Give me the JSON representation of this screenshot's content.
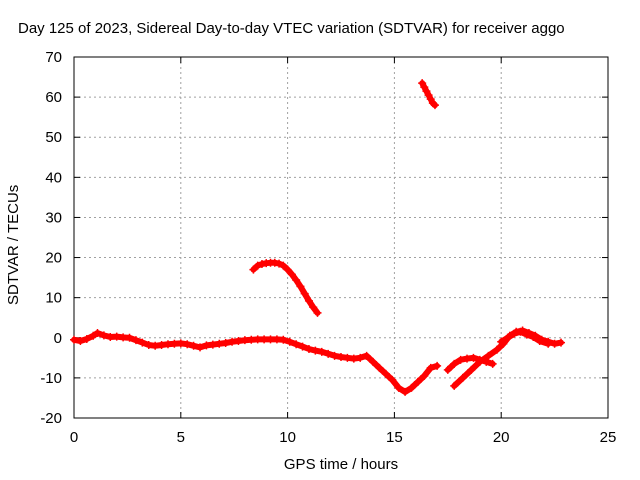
{
  "chart_data": {
    "type": "scatter",
    "title": "Day 125 of 2023, Sidereal Day-to-day VTEC variation (SDTVAR) for receiver aggo",
    "xlabel": "GPS time / hours",
    "ylabel": "SDTVAR / TECUs",
    "xlim": [
      0,
      25
    ],
    "ylim": [
      -20,
      70
    ],
    "xticks": [
      0,
      5,
      10,
      15,
      20,
      25
    ],
    "yticks": [
      -20,
      -10,
      0,
      10,
      20,
      30,
      40,
      50,
      60,
      70
    ],
    "grid": true,
    "marker_color": "#ff0000",
    "series": [
      {
        "name": "track-main",
        "points": [
          [
            0.0,
            -0.5
          ],
          [
            0.3,
            -0.8
          ],
          [
            0.6,
            -0.3
          ],
          [
            0.9,
            0.5
          ],
          [
            1.1,
            1.2
          ],
          [
            1.4,
            0.6
          ],
          [
            1.7,
            0.2
          ],
          [
            2.0,
            0.3
          ],
          [
            2.3,
            0.1
          ],
          [
            2.6,
            0.0
          ],
          [
            2.9,
            -0.6
          ],
          [
            3.2,
            -1.2
          ],
          [
            3.5,
            -1.8
          ],
          [
            3.8,
            -2.0
          ],
          [
            4.1,
            -1.8
          ],
          [
            4.4,
            -1.6
          ],
          [
            4.7,
            -1.5
          ],
          [
            5.0,
            -1.4
          ],
          [
            5.3,
            -1.6
          ],
          [
            5.6,
            -2.0
          ],
          [
            5.9,
            -2.4
          ],
          [
            6.2,
            -1.9
          ],
          [
            6.5,
            -1.7
          ],
          [
            6.8,
            -1.5
          ],
          [
            7.1,
            -1.3
          ],
          [
            7.4,
            -1.0
          ],
          [
            7.7,
            -0.8
          ],
          [
            8.0,
            -0.6
          ],
          [
            8.3,
            -0.5
          ],
          [
            8.6,
            -0.4
          ],
          [
            8.9,
            -0.4
          ],
          [
            9.2,
            -0.4
          ],
          [
            9.5,
            -0.4
          ],
          [
            9.8,
            -0.5
          ],
          [
            10.1,
            -1.0
          ],
          [
            10.4,
            -1.6
          ],
          [
            10.7,
            -2.2
          ],
          [
            11.0,
            -2.8
          ],
          [
            11.3,
            -3.2
          ],
          [
            11.6,
            -3.5
          ],
          [
            11.9,
            -4.0
          ],
          [
            12.2,
            -4.5
          ],
          [
            12.5,
            -4.8
          ],
          [
            12.8,
            -5.0
          ],
          [
            13.1,
            -5.2
          ],
          [
            13.4,
            -5.0
          ],
          [
            13.7,
            -4.5
          ],
          [
            14.0,
            -6.0
          ],
          [
            14.3,
            -7.5
          ],
          [
            14.6,
            -9.0
          ],
          [
            14.9,
            -10.5
          ],
          [
            15.2,
            -12.5
          ],
          [
            15.5,
            -13.5
          ],
          [
            15.8,
            -12.5
          ],
          [
            16.1,
            -11.0
          ],
          [
            16.4,
            -9.5
          ],
          [
            16.7,
            -7.5
          ],
          [
            17.0,
            -7.0
          ]
        ]
      },
      {
        "name": "track-evening",
        "points": [
          [
            17.5,
            -8.0
          ],
          [
            17.8,
            -6.5
          ],
          [
            18.1,
            -5.5
          ],
          [
            18.4,
            -5.2
          ],
          [
            18.7,
            -5.0
          ],
          [
            19.0,
            -5.5
          ],
          [
            19.3,
            -6.0
          ],
          [
            19.6,
            -6.5
          ]
        ]
      },
      {
        "name": "track-rising",
        "points": [
          [
            17.8,
            -12.0
          ],
          [
            18.2,
            -10.0
          ],
          [
            18.6,
            -8.0
          ],
          [
            19.0,
            -6.0
          ],
          [
            19.4,
            -4.5
          ],
          [
            19.8,
            -3.0
          ],
          [
            20.1,
            -1.5
          ],
          [
            20.4,
            0.5
          ],
          [
            20.7,
            1.5
          ],
          [
            21.0,
            1.8
          ],
          [
            21.3,
            1.2
          ],
          [
            21.6,
            0.5
          ],
          [
            21.9,
            -0.5
          ],
          [
            22.2,
            -1.0
          ],
          [
            22.5,
            -1.5
          ],
          [
            22.8,
            -1.2
          ]
        ]
      },
      {
        "name": "track-branch",
        "points": [
          [
            20.0,
            -1.0
          ],
          [
            20.3,
            0.0
          ],
          [
            20.6,
            1.0
          ],
          [
            20.9,
            1.5
          ],
          [
            21.2,
            0.8
          ],
          [
            21.5,
            0.2
          ],
          [
            21.8,
            -0.8
          ],
          [
            22.2,
            -1.5
          ]
        ]
      },
      {
        "name": "track-arc",
        "points": [
          [
            8.4,
            17.0
          ],
          [
            8.6,
            18.0
          ],
          [
            8.8,
            18.4
          ],
          [
            9.0,
            18.6
          ],
          [
            9.2,
            18.7
          ],
          [
            9.4,
            18.7
          ],
          [
            9.6,
            18.5
          ],
          [
            9.8,
            18.0
          ],
          [
            10.0,
            17.0
          ],
          [
            10.2,
            15.8
          ],
          [
            10.4,
            14.4
          ],
          [
            10.6,
            12.8
          ],
          [
            10.8,
            11.0
          ],
          [
            11.0,
            9.2
          ],
          [
            11.2,
            7.6
          ],
          [
            11.4,
            6.2
          ]
        ]
      },
      {
        "name": "track-high",
        "points": [
          [
            16.3,
            63.5
          ],
          [
            16.4,
            62.5
          ],
          [
            16.5,
            61.5
          ],
          [
            16.6,
            60.5
          ],
          [
            16.7,
            59.5
          ],
          [
            16.8,
            58.5
          ],
          [
            16.9,
            58.0
          ]
        ]
      }
    ]
  }
}
